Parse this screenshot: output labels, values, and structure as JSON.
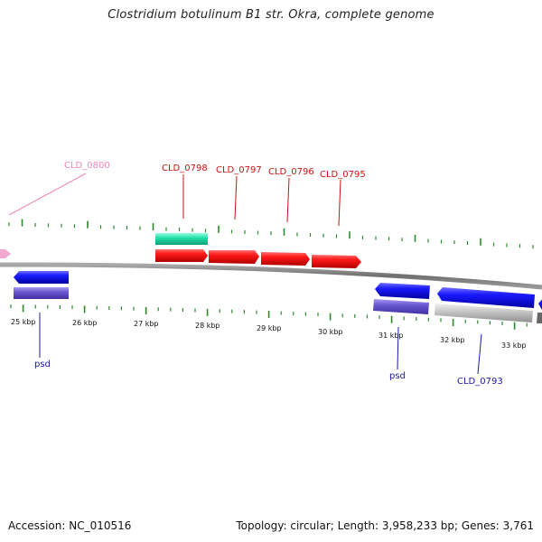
{
  "title": "Clostridium botulinum B1 str. Okra, complete genome",
  "footer": {
    "accession": "Accession: NC_010516",
    "summary": "Topology: circular; Length: 3,958,233 bp; Genes: 3,761"
  },
  "colors": {
    "backbone": "#777777",
    "tick": "#2a8a2a",
    "forward_gene": "#ee1111",
    "reverse_gene": "#1a1aee",
    "teal_feature": "#22ddaa",
    "purple_feature": "#6655cc",
    "grey_feature": "#bbbbbb",
    "pink_label": "#ee88bb",
    "red_label": "#cc1111",
    "blue_label": "#1a1aaa"
  },
  "scale_labels": [
    "25 kbp",
    "26 kbp",
    "27 kbp",
    "28 kbp",
    "29 kbp",
    "30 kbp",
    "31 kbp",
    "32 kbp",
    "33 kbp"
  ],
  "gene_labels": {
    "cld0800": "CLD_0800",
    "cld0798": "CLD_0798",
    "cld0797": "CLD_0797",
    "cld0796": "CLD_0796",
    "cld0795": "CLD_0795",
    "psd1": "psd",
    "psd2": "psd",
    "cld0793": "CLD_0793"
  }
}
